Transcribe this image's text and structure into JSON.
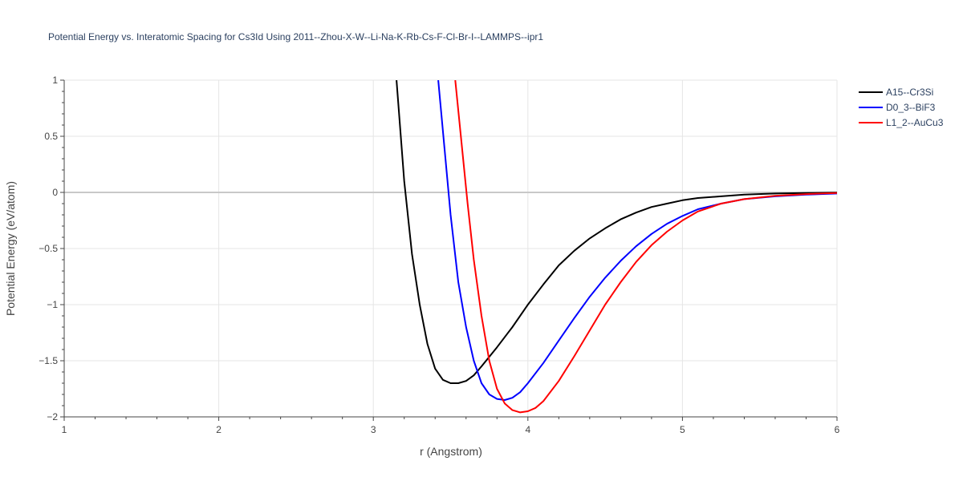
{
  "chart_data": {
    "type": "line",
    "title": "Potential Energy vs. Interatomic Spacing for Cs3Id Using 2011--Zhou-X-W--Li-Na-K-Rb-Cs-F-Cl-Br-I--LAMMPS--ipr1",
    "xlabel": "r (Angstrom)",
    "ylabel": "Potential Energy (eV/atom)",
    "xlim": [
      1,
      6
    ],
    "ylim": [
      -2,
      1
    ],
    "xticks": [
      1,
      2,
      3,
      4,
      5,
      6
    ],
    "xtick_labels": [
      "1",
      "2",
      "3",
      "4",
      "5",
      "6"
    ],
    "yticks": [
      1,
      0.5,
      0,
      -0.5,
      -1,
      -1.5,
      -2
    ],
    "ytick_labels": [
      "1",
      "0.5",
      "0",
      "−0.5",
      "−1",
      "−1.5",
      "−2"
    ],
    "grid": true,
    "legend_position": "top-right",
    "series": [
      {
        "name": "A15--Cr3Si",
        "color": "#000000",
        "x": [
          3.15,
          3.2,
          3.25,
          3.3,
          3.35,
          3.4,
          3.45,
          3.5,
          3.55,
          3.6,
          3.65,
          3.7,
          3.8,
          3.9,
          4.0,
          4.1,
          4.2,
          4.3,
          4.4,
          4.5,
          4.6,
          4.7,
          4.8,
          4.9,
          5.0,
          5.1,
          5.25,
          5.4,
          5.6,
          5.8,
          6.0
        ],
        "y": [
          1.0,
          0.1,
          -0.55,
          -1.0,
          -1.35,
          -1.57,
          -1.67,
          -1.7,
          -1.7,
          -1.68,
          -1.63,
          -1.55,
          -1.38,
          -1.2,
          -1.0,
          -0.82,
          -0.65,
          -0.52,
          -0.41,
          -0.32,
          -0.24,
          -0.18,
          -0.13,
          -0.1,
          -0.07,
          -0.05,
          -0.035,
          -0.02,
          -0.01,
          -0.005,
          -0.002
        ]
      },
      {
        "name": "D0_3--BiF3",
        "color": "#0000ff",
        "x": [
          3.42,
          3.46,
          3.5,
          3.55,
          3.6,
          3.65,
          3.7,
          3.75,
          3.8,
          3.85,
          3.9,
          3.95,
          4.0,
          4.1,
          4.2,
          4.3,
          4.4,
          4.5,
          4.6,
          4.7,
          4.8,
          4.9,
          5.0,
          5.1,
          5.25,
          5.4,
          5.6,
          5.8,
          6.0
        ],
        "y": [
          1.0,
          0.4,
          -0.2,
          -0.8,
          -1.2,
          -1.5,
          -1.7,
          -1.8,
          -1.84,
          -1.85,
          -1.83,
          -1.78,
          -1.7,
          -1.52,
          -1.32,
          -1.12,
          -0.93,
          -0.76,
          -0.61,
          -0.48,
          -0.37,
          -0.28,
          -0.21,
          -0.15,
          -0.1,
          -0.06,
          -0.035,
          -0.02,
          -0.01
        ]
      },
      {
        "name": "L1_2--AuCu3",
        "color": "#ff0000",
        "x": [
          3.53,
          3.57,
          3.61,
          3.65,
          3.7,
          3.75,
          3.8,
          3.85,
          3.9,
          3.95,
          4.0,
          4.05,
          4.1,
          4.2,
          4.3,
          4.4,
          4.5,
          4.6,
          4.7,
          4.8,
          4.9,
          5.0,
          5.1,
          5.25,
          5.4,
          5.6,
          5.8,
          6.0
        ],
        "y": [
          1.0,
          0.45,
          -0.1,
          -0.6,
          -1.1,
          -1.5,
          -1.75,
          -1.88,
          -1.94,
          -1.96,
          -1.95,
          -1.92,
          -1.86,
          -1.68,
          -1.46,
          -1.23,
          -1.0,
          -0.8,
          -0.62,
          -0.47,
          -0.35,
          -0.25,
          -0.17,
          -0.1,
          -0.06,
          -0.03,
          -0.015,
          -0.005
        ]
      }
    ]
  }
}
